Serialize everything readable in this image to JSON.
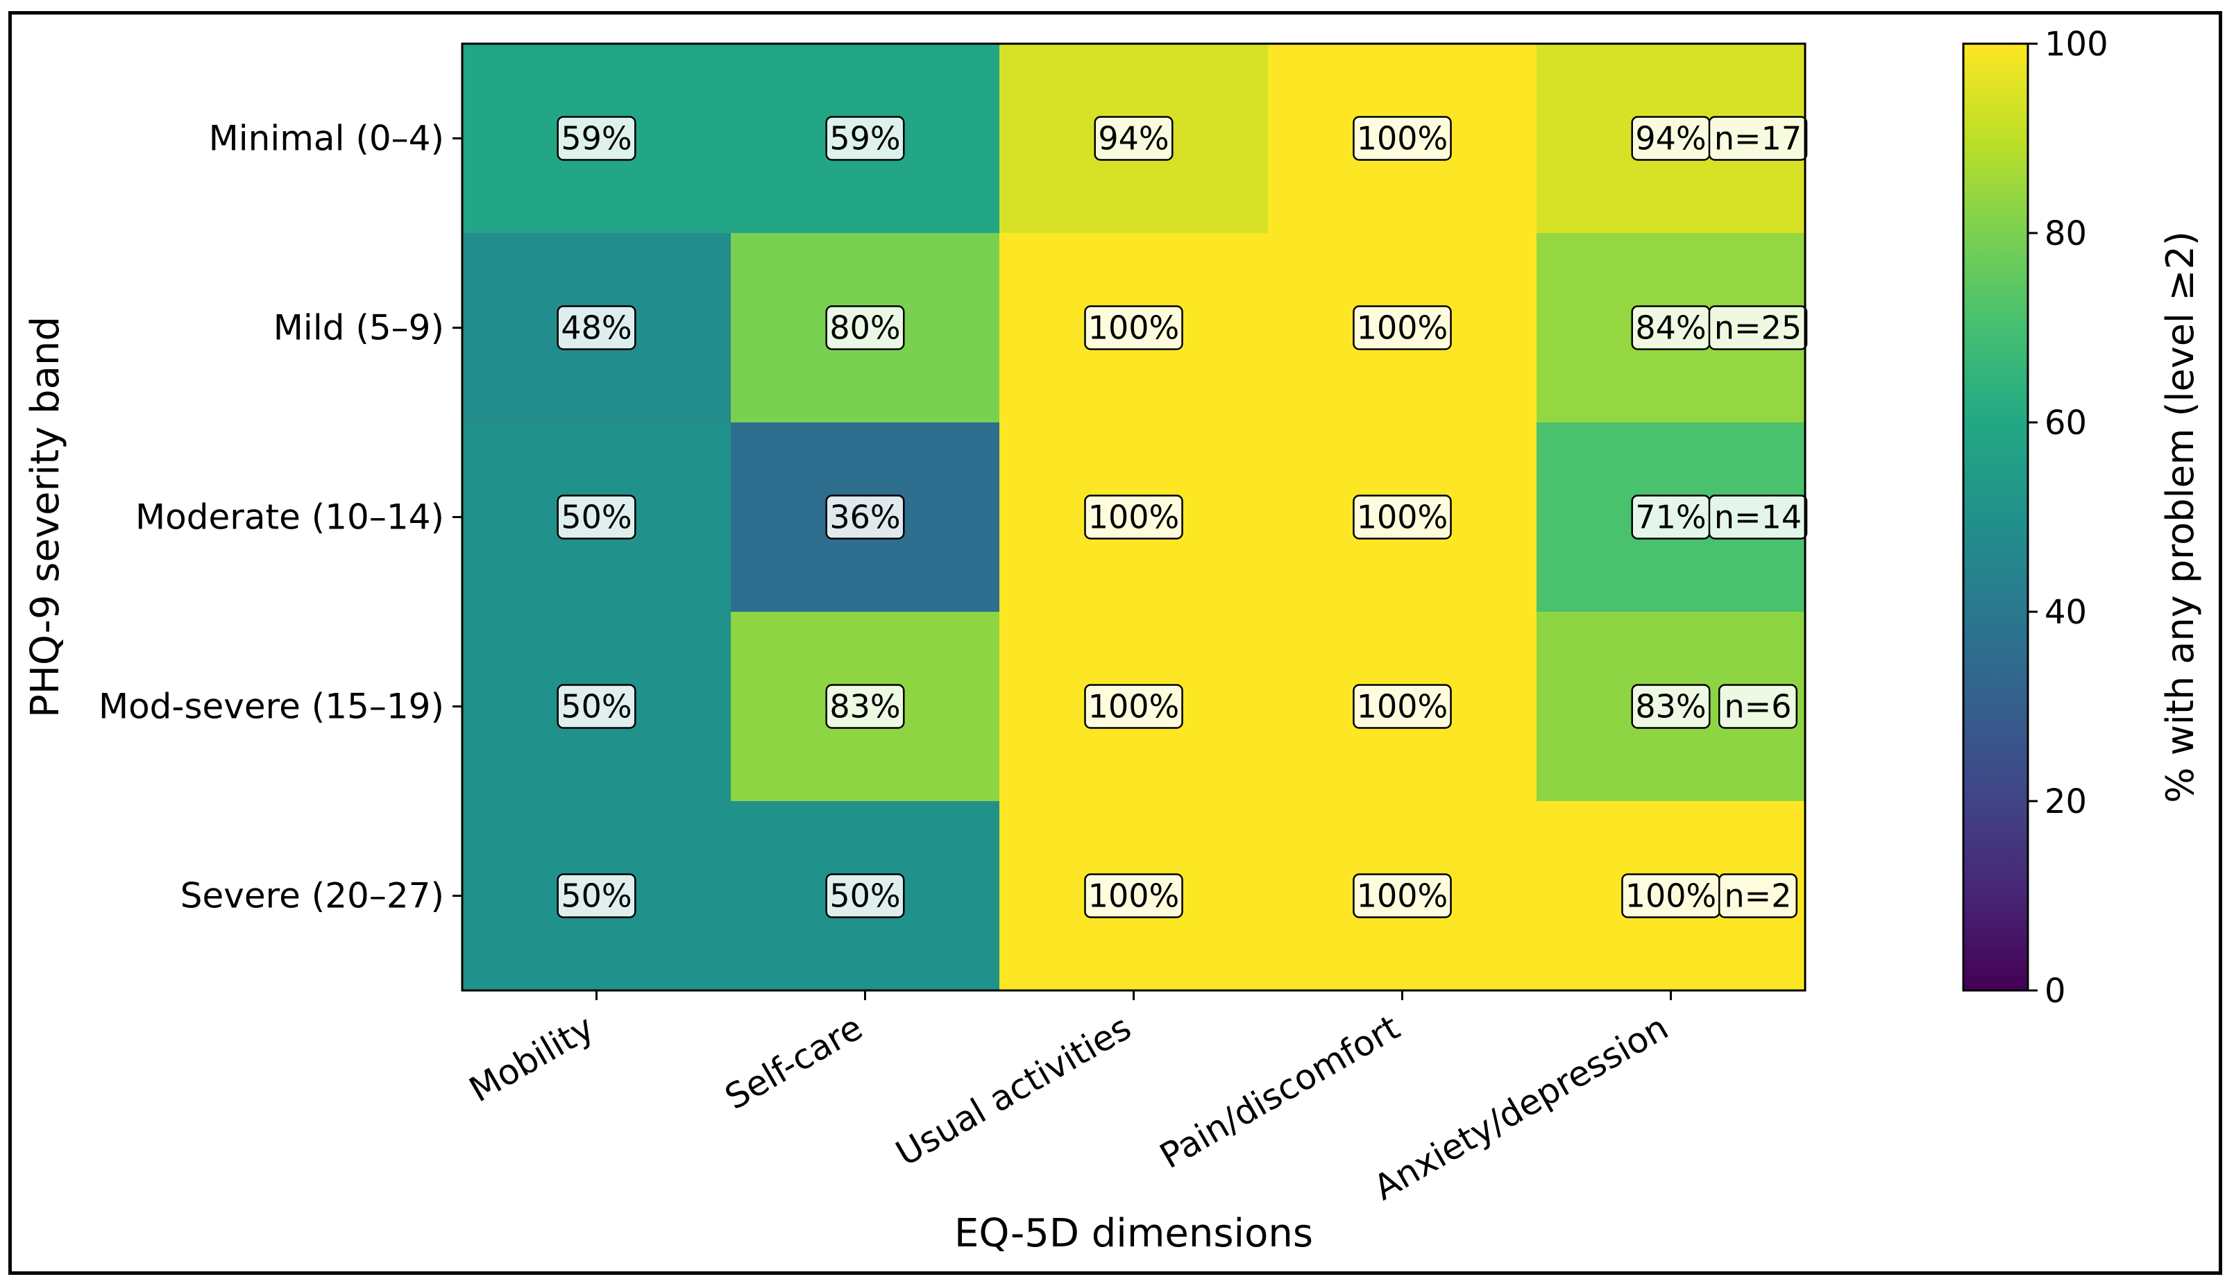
{
  "chart_data": {
    "type": "heatmap",
    "xlabel": "EQ-5D dimensions",
    "ylabel": "PHQ-9 severity band",
    "colorbar_label": "% with any problem (level ≥2)",
    "colorbar_range": [
      0,
      100
    ],
    "colorbar_ticks": [
      "0",
      "20",
      "40",
      "60",
      "80",
      "100"
    ],
    "colormap": "viridis",
    "x_categories": [
      "Mobility",
      "Self-care",
      "Usual activities",
      "Pain/discomfort",
      "Anxiety/depression"
    ],
    "y_categories": [
      "Minimal (0–4)",
      "Mild (5–9)",
      "Moderate (10–14)",
      "Mod-severe (15–19)",
      "Severe (20–27)"
    ],
    "values": [
      [
        59,
        59,
        94,
        100,
        94
      ],
      [
        48,
        80,
        100,
        100,
        84
      ],
      [
        50,
        36,
        100,
        100,
        71
      ],
      [
        50,
        83,
        100,
        100,
        83
      ],
      [
        50,
        50,
        100,
        100,
        100
      ]
    ],
    "cell_labels": [
      [
        "59%",
        "59%",
        "94%",
        "100%",
        "94%"
      ],
      [
        "48%",
        "80%",
        "100%",
        "100%",
        "84%"
      ],
      [
        "50%",
        "36%",
        "100%",
        "100%",
        "71%"
      ],
      [
        "50%",
        "83%",
        "100%",
        "100%",
        "83%"
      ],
      [
        "50%",
        "50%",
        "100%",
        "100%",
        "100%"
      ]
    ],
    "row_n_labels": [
      "n=17",
      "n=25",
      "n=14",
      "n=6",
      "n=2"
    ]
  }
}
